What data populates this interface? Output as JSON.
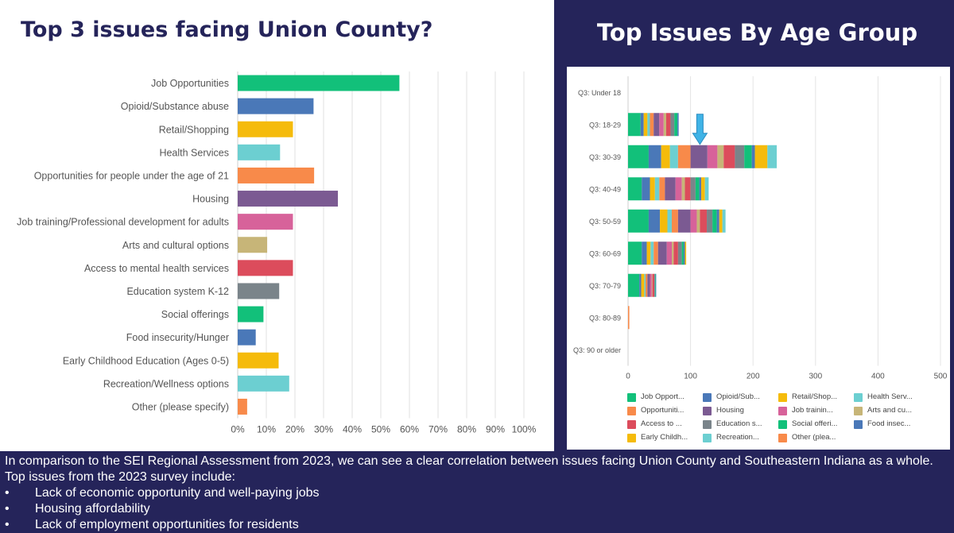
{
  "left_title": "Top 3 issues facing Union County?",
  "right_title": "Top Issues By Age Group",
  "colors": {
    "page_bg": "#25245a",
    "green": "#12c07a",
    "blue": "#4a78b8",
    "yellow": "#f5bb0b",
    "teal": "#6ccfd1",
    "orange": "#f88a4a",
    "purple": "#7b5a92",
    "pink": "#d7629a",
    "tan": "#c7b578",
    "red": "#dc4c5c",
    "gray": "#7a848a",
    "arrow": "#3fb3e6"
  },
  "chart_data": [
    {
      "type": "bar",
      "orientation": "horizontal",
      "title": "Top 3 issues facing Union County?",
      "categories": [
        "Job Opportunities",
        "Opioid/Substance abuse",
        "Retail/Shopping",
        "Health Services",
        "Opportunities for people under the age of 21",
        "Housing",
        "Job training/Professional development for adults",
        "Arts and cultural options",
        "Access to mental health services",
        "Education system K-12",
        "Social offerings",
        "Food insecurity/Hunger",
        "Early Childhood Education (Ages 0-5)",
        "Recreation/Wellness options",
        "Other (please specify)"
      ],
      "values": [
        56.5,
        26.5,
        19.3,
        14.8,
        26.7,
        35,
        19.3,
        10.3,
        19.3,
        14.5,
        9.0,
        6.3,
        14.3,
        18.0,
        3.3
      ],
      "bar_colors": [
        "green",
        "blue",
        "yellow",
        "teal",
        "orange",
        "purple",
        "pink",
        "tan",
        "red",
        "gray",
        "green",
        "blue",
        "yellow",
        "teal",
        "orange"
      ],
      "xlim": [
        0,
        100
      ],
      "xticks": [
        "0%",
        "10%",
        "20%",
        "30%",
        "40%",
        "50%",
        "60%",
        "70%",
        "80%",
        "90%",
        "100%"
      ],
      "grid": true
    },
    {
      "type": "bar",
      "orientation": "horizontal",
      "stacked": true,
      "title": "Top Issues By Age Group",
      "categories": [
        "Q3: Under 18",
        "Q3: 18-29",
        "Q3: 30-39",
        "Q3: 40-49",
        "Q3: 50-59",
        "Q3: 60-69",
        "Q3: 70-79",
        "Q3: 80-89",
        "Q3: 90 or older"
      ],
      "xlim": [
        0,
        500
      ],
      "xticks": [
        "0",
        "100",
        "200",
        "300",
        "400",
        "500"
      ],
      "series": [
        {
          "name": "Job Opport...",
          "color": "green",
          "values": [
            0,
            20,
            33,
            22,
            33,
            22,
            18,
            0,
            0
          ]
        },
        {
          "name": "Opioid/Sub...",
          "color": "blue",
          "values": [
            0,
            5,
            20,
            13,
            18,
            8,
            3,
            0,
            0
          ]
        },
        {
          "name": "Retail/Shop...",
          "color": "yellow",
          "values": [
            0,
            6,
            14,
            8,
            12,
            6,
            5,
            0,
            0
          ]
        },
        {
          "name": "Health Serv...",
          "color": "teal",
          "values": [
            0,
            4,
            13,
            7,
            7,
            5,
            2,
            0,
            0
          ]
        },
        {
          "name": "Opportuniti...",
          "color": "orange",
          "values": [
            0,
            6,
            20,
            9,
            10,
            7,
            3,
            0,
            0
          ]
        },
        {
          "name": "Housing",
          "color": "purple",
          "values": [
            0,
            9,
            27,
            17,
            20,
            14,
            4,
            0,
            0
          ]
        },
        {
          "name": "Job trainin...",
          "color": "pink",
          "values": [
            0,
            7,
            16,
            10,
            10,
            8,
            3,
            0,
            0
          ]
        },
        {
          "name": "Arts and cu...",
          "color": "tan",
          "values": [
            0,
            4,
            10,
            5,
            5,
            3,
            1,
            0,
            0
          ]
        },
        {
          "name": "Access to ...",
          "color": "red",
          "values": [
            0,
            7,
            18,
            9,
            11,
            7,
            3,
            0,
            0
          ]
        },
        {
          "name": "Education s...",
          "color": "gray",
          "values": [
            0,
            6,
            15,
            8,
            9,
            6,
            1,
            0,
            0
          ]
        },
        {
          "name": "Social offeri...",
          "color": "green",
          "values": [
            0,
            5,
            12,
            6,
            7,
            3,
            1,
            0,
            0
          ]
        },
        {
          "name": "Food insec...",
          "color": "blue",
          "values": [
            0,
            2,
            5,
            3,
            4,
            2,
            1,
            0,
            0
          ]
        },
        {
          "name": "Early Childh...",
          "color": "yellow",
          "values": [
            0,
            0,
            20,
            6,
            5,
            2,
            0,
            0,
            0
          ]
        },
        {
          "name": "Recreation...",
          "color": "teal",
          "values": [
            0,
            0,
            15,
            6,
            5,
            0,
            0,
            0,
            0
          ]
        },
        {
          "name": "Other (plea...",
          "color": "orange",
          "values": [
            0,
            0,
            0,
            0,
            0,
            0,
            0,
            2,
            0
          ]
        }
      ],
      "legend_position": "bottom",
      "annotation": {
        "type": "arrow",
        "category": "Q3: 30-39",
        "x_value": 115,
        "color": "arrow"
      }
    }
  ],
  "footer": {
    "intro": "In comparison to the SEI Regional Assessment from 2023, we can see a clear correlation between issues facing Union County and Southeastern Indiana as a whole. Top issues from the 2023 survey include:",
    "bullet_symbol": "•",
    "bullets": [
      "Lack of economic opportunity and well-paying jobs",
      "Housing affordability",
      "Lack of employment opportunities for residents"
    ]
  }
}
